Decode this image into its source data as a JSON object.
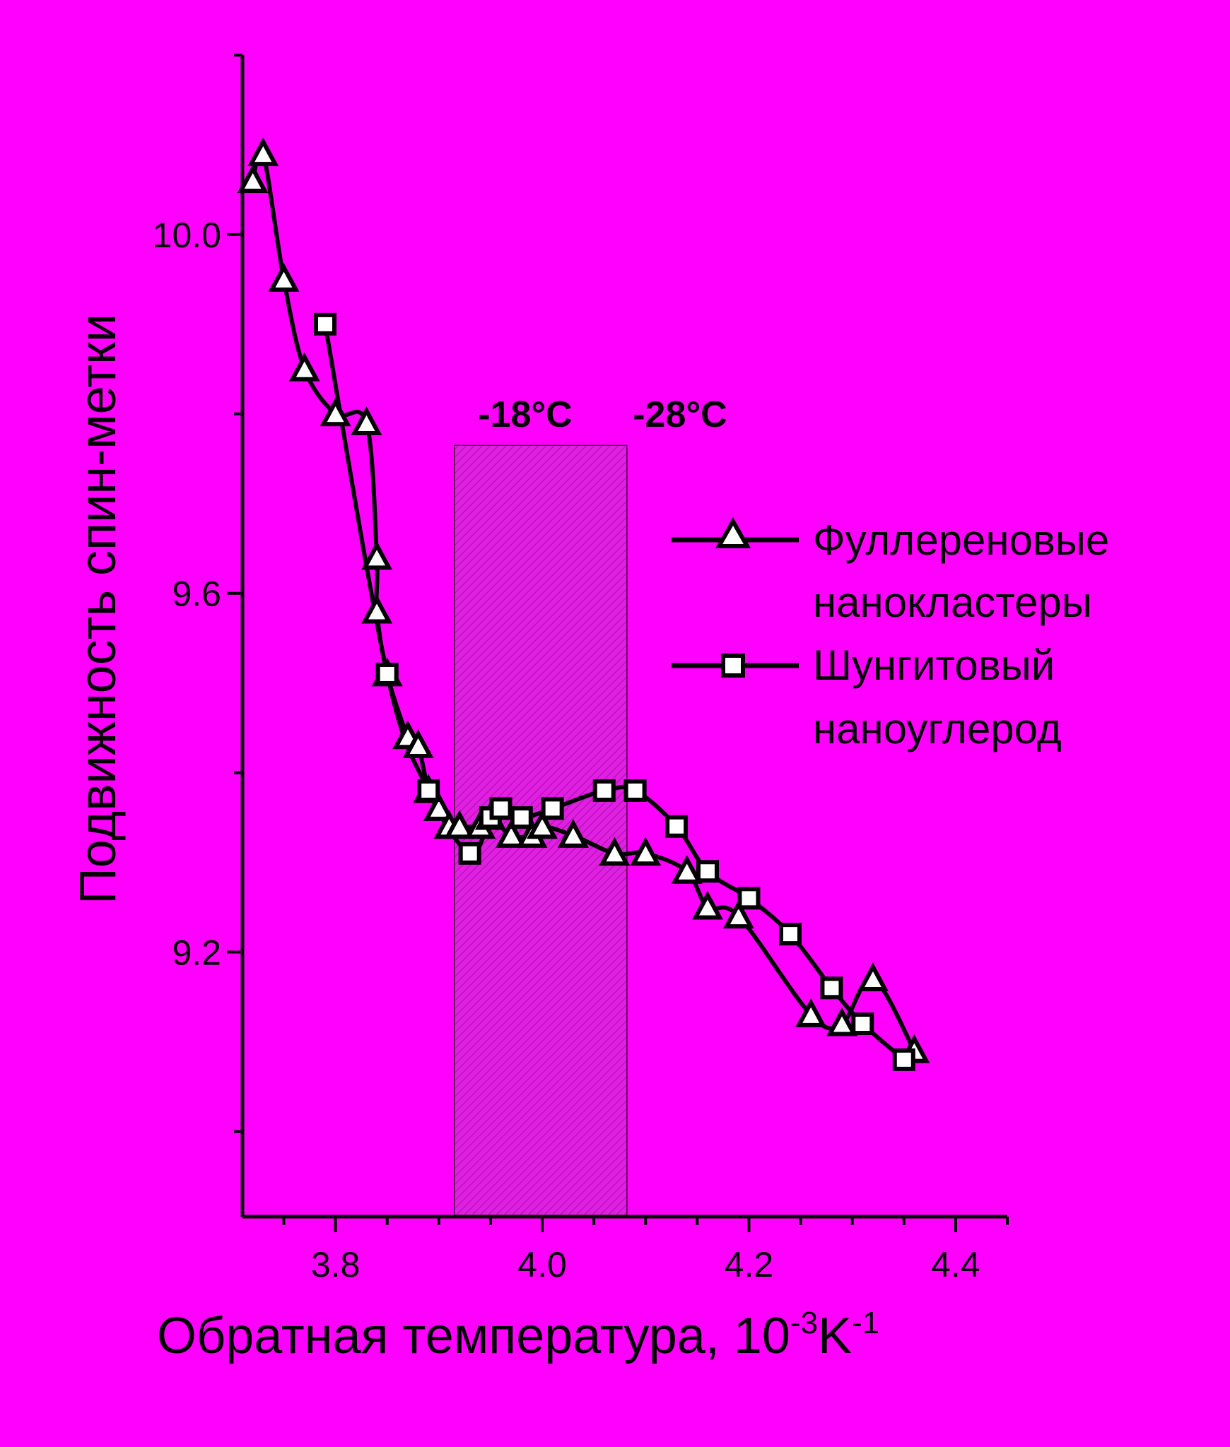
{
  "colors": {
    "background": "#FF00FF",
    "foreground": "#000000",
    "marker_fill": "#FFFFFF",
    "band_fill": "#E020E0"
  },
  "chart_data": {
    "type": "line",
    "title": "",
    "xlabel": "Обратная температура, 10",
    "xlabel_sup1": "-3",
    "xlabel_unit": "K",
    "xlabel_sup2": "-1",
    "ylabel": "Подвижность спин-метки",
    "xlim": [
      3.71,
      4.45
    ],
    "ylim": [
      8.905,
      10.2
    ],
    "xticks": [
      3.8,
      4.0,
      4.2,
      4.4
    ],
    "xtick_labels": [
      "3.8",
      "4.0",
      "4.2",
      "4.4"
    ],
    "xminor_step": 0.05,
    "yticks": [
      9.2,
      9.6,
      10.0
    ],
    "ytick_labels": [
      "9.2",
      "9.6",
      "10.0"
    ],
    "yminor_step": 0.2,
    "grid": false,
    "legend_position": "right",
    "annotations": [
      "-18°C",
      "-28°C"
    ],
    "shaded_band": {
      "x": [
        3.915,
        4.082
      ],
      "y": [
        8.905,
        9.765
      ]
    },
    "series": [
      {
        "name": "Фуллереновые нанокластеры",
        "marker": "triangle",
        "x": [
          3.72,
          3.73,
          3.75,
          3.77,
          3.8,
          3.83,
          3.84,
          3.84,
          3.85,
          3.87,
          3.88,
          3.89,
          3.9,
          3.91,
          3.92,
          3.94,
          3.95,
          3.97,
          3.99,
          4.0,
          4.03,
          4.07,
          4.1,
          4.14,
          4.16,
          4.19,
          4.26,
          4.29,
          4.32,
          4.36
        ],
        "y": [
          10.06,
          10.09,
          9.95,
          9.85,
          9.8,
          9.79,
          9.64,
          9.58,
          9.51,
          9.44,
          9.43,
          9.38,
          9.36,
          9.34,
          9.34,
          9.34,
          9.35,
          9.33,
          9.33,
          9.34,
          9.33,
          9.31,
          9.31,
          9.29,
          9.25,
          9.24,
          9.13,
          9.12,
          9.17,
          9.09
        ]
      },
      {
        "name": "Шунгитовый наноуглерод",
        "marker": "square",
        "x": [
          3.79,
          3.85,
          3.89,
          3.93,
          3.95,
          3.96,
          3.98,
          4.01,
          4.06,
          4.09,
          4.13,
          4.16,
          4.2,
          4.24,
          4.28,
          4.31,
          4.35
        ],
        "y": [
          9.9,
          9.51,
          9.38,
          9.31,
          9.35,
          9.36,
          9.35,
          9.36,
          9.38,
          9.38,
          9.34,
          9.29,
          9.26,
          9.22,
          9.16,
          9.12,
          9.08
        ]
      }
    ]
  }
}
